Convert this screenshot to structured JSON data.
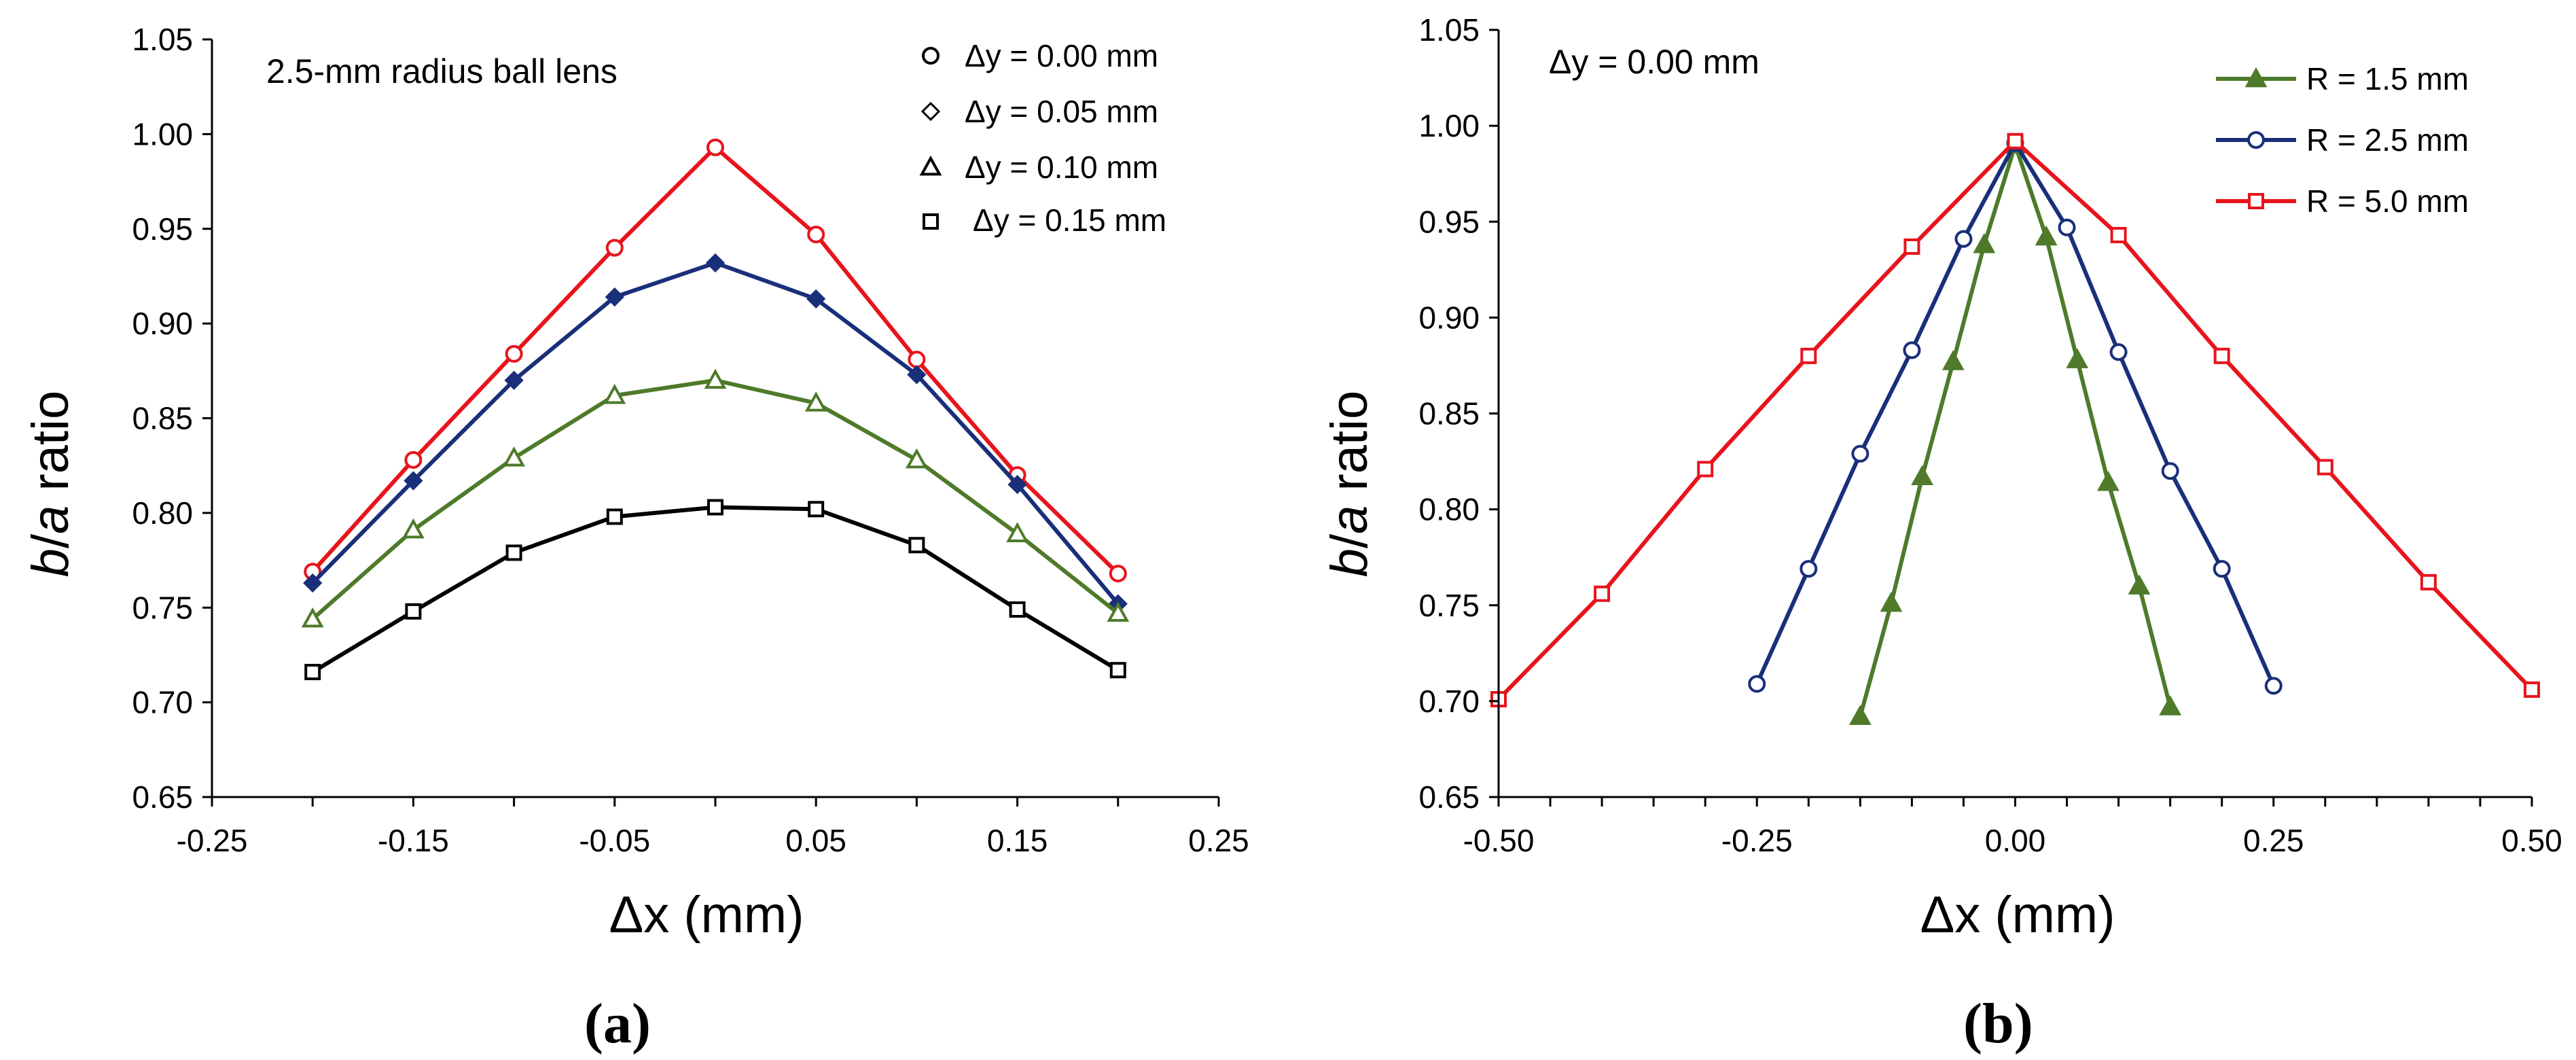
{
  "chart_data": [
    {
      "type": "line",
      "panel_label": "(a)",
      "annotation": "2.5-mm radius ball lens",
      "xlabel": "Δx (mm)",
      "ylabel_italic_b": "b",
      "ylabel_slash": "/",
      "ylabel_italic_a": "a",
      "ylabel_rest": " ratio",
      "xlim": [
        -0.25,
        0.25
      ],
      "ylim": [
        0.65,
        1.05
      ],
      "xticks": [
        "-0.25",
        "-0.15",
        "-0.05",
        "0.05",
        "0.15",
        "0.25"
      ],
      "xtick_values": [
        -0.25,
        -0.15,
        -0.05,
        0.05,
        0.15,
        0.25
      ],
      "yticks": [
        "0.65",
        "0.70",
        "0.75",
        "0.80",
        "0.85",
        "0.90",
        "0.95",
        "1.00",
        "1.05"
      ],
      "ytick_values": [
        0.65,
        0.7,
        0.75,
        0.8,
        0.85,
        0.9,
        0.95,
        1.0,
        1.05
      ],
      "legend_position": "top-right",
      "legend": [
        {
          "label": "Δy = 0.00 mm",
          "marker": "circle"
        },
        {
          "label": "Δy = 0.05 mm",
          "marker": "diamond"
        },
        {
          "label": "Δy = 0.10 mm",
          "marker": "triangle"
        },
        {
          "label": "Δy = 0.15 mm",
          "marker": "square"
        }
      ],
      "x": [
        -0.2,
        -0.15,
        -0.1,
        -0.05,
        0.0,
        0.05,
        0.1,
        0.15,
        0.2
      ],
      "series": [
        {
          "name": "Δy = 0.00 mm",
          "marker": "circle",
          "color": "#e8141c",
          "fill": "none",
          "values": [
            0.769,
            0.828,
            0.884,
            0.94,
            0.993,
            0.947,
            0.881,
            0.82,
            0.768
          ]
        },
        {
          "name": "Δy = 0.05 mm",
          "marker": "diamond",
          "color": "#1a2f7a",
          "fill": "#1a2f7a",
          "values": [
            0.763,
            0.817,
            0.87,
            0.914,
            0.932,
            0.913,
            0.873,
            0.815,
            0.752
          ]
        },
        {
          "name": "Δy = 0.10 mm",
          "marker": "triangle",
          "color": "#4e7a2a",
          "fill": "none",
          "values": [
            0.744,
            0.791,
            0.829,
            0.862,
            0.87,
            0.858,
            0.828,
            0.789,
            0.747
          ]
        },
        {
          "name": "Δy = 0.15 mm",
          "marker": "square",
          "color": "#000000",
          "fill": "none",
          "values": [
            0.716,
            0.748,
            0.779,
            0.798,
            0.803,
            0.802,
            0.783,
            0.749,
            0.717
          ]
        }
      ]
    },
    {
      "type": "line",
      "panel_label": "(b)",
      "annotation": "Δy = 0.00 mm",
      "xlabel": "Δx (mm)",
      "ylabel_italic_b": "b",
      "ylabel_slash": "/",
      "ylabel_italic_a": "a",
      "ylabel_rest": " ratio",
      "xlim": [
        -0.5,
        0.5
      ],
      "ylim": [
        0.65,
        1.05
      ],
      "xticks": [
        "-0.50",
        "-0.25",
        "0.00",
        "0.25",
        "0.50"
      ],
      "xtick_values": [
        -0.5,
        -0.25,
        0.0,
        0.25,
        0.5
      ],
      "yticks": [
        "0.65",
        "0.70",
        "0.75",
        "0.80",
        "0.85",
        "0.90",
        "0.95",
        "1.00",
        "1.05"
      ],
      "ytick_values": [
        0.65,
        0.7,
        0.75,
        0.8,
        0.85,
        0.9,
        0.95,
        1.0,
        1.05
      ],
      "legend_position": "top-right",
      "legend": [
        {
          "label": "R = 1.5 mm",
          "marker": "triangle",
          "color": "#4e7a2a",
          "fill": "#4e7a2a"
        },
        {
          "label": "R = 2.5 mm",
          "marker": "circle",
          "color": "#1a2f7a",
          "fill": "none"
        },
        {
          "label": "R = 5.0 mm",
          "marker": "square",
          "color": "#e8141c",
          "fill": "none"
        }
      ],
      "series": [
        {
          "name": "R = 1.5 mm",
          "marker": "triangle",
          "color": "#4e7a2a",
          "fill": "#4e7a2a",
          "x": [
            -0.15,
            -0.12,
            -0.09,
            -0.06,
            -0.03,
            0.0,
            0.03,
            0.06,
            0.09,
            0.12,
            0.15
          ],
          "values": [
            0.692,
            0.751,
            0.817,
            0.877,
            0.938,
            0.99,
            0.942,
            0.878,
            0.814,
            0.76,
            0.697
          ]
        },
        {
          "name": "R = 2.5 mm",
          "marker": "circle",
          "color": "#1a2f7a",
          "fill": "none",
          "x": [
            -0.25,
            -0.2,
            -0.15,
            -0.1,
            -0.05,
            0.0,
            0.05,
            0.1,
            0.15,
            0.2,
            0.25
          ],
          "values": [
            0.709,
            0.769,
            0.829,
            0.883,
            0.941,
            0.991,
            0.947,
            0.882,
            0.82,
            0.769,
            0.708
          ]
        },
        {
          "name": "R = 5.0 mm",
          "marker": "square",
          "color": "#e8141c",
          "fill": "none",
          "x": [
            -0.5,
            -0.4,
            -0.3,
            -0.2,
            -0.1,
            0.0,
            0.1,
            0.2,
            0.3,
            0.4,
            0.5
          ],
          "values": [
            0.701,
            0.756,
            0.821,
            0.88,
            0.937,
            0.992,
            0.943,
            0.88,
            0.822,
            0.762,
            0.706
          ]
        }
      ]
    }
  ]
}
